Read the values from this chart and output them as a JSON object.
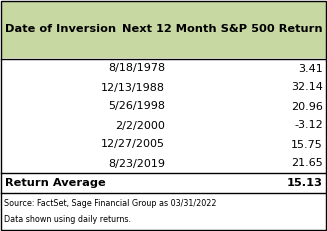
{
  "header": [
    "Date of Inversion",
    "Next 12 Month S&P 500 Return"
  ],
  "rows": [
    [
      "8/18/1978",
      "3.41"
    ],
    [
      "12/13/1988",
      "32.14"
    ],
    [
      "5/26/1998",
      "20.96"
    ],
    [
      "2/2/2000",
      "-3.12"
    ],
    [
      "12/27/2005",
      "15.75"
    ],
    [
      "8/23/2019",
      "21.65"
    ]
  ],
  "footer_label": "Return Average",
  "footer_value": "15.13",
  "source_line1": "Source: FactSet, Sage Financial Group as 03/31/2022",
  "source_line2": "Data shown using daily returns.",
  "header_bg": "#c8d8a2",
  "border_color": "#000000",
  "text_color": "#000000",
  "fig_width": 3.27,
  "fig_height": 2.31,
  "dpi": 100
}
